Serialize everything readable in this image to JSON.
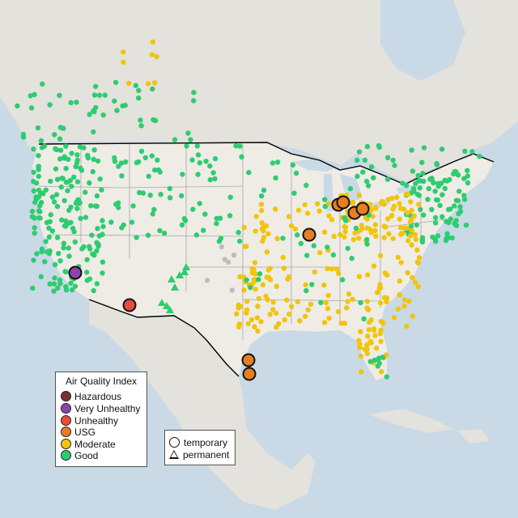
{
  "legend": {
    "title": "Air Quality Index",
    "categories": [
      {
        "label": "Hazardous",
        "color": "#7a3030"
      },
      {
        "label": "Very Unhealthy",
        "color": "#8e44ad"
      },
      {
        "label": "Unhealthy",
        "color": "#e74c3c"
      },
      {
        "label": "USG",
        "color": "#e67e22"
      },
      {
        "label": "Moderate",
        "color": "#f1c40f"
      },
      {
        "label": "Good",
        "color": "#2ecc71"
      }
    ]
  },
  "type_legend": {
    "temporary": "temporary",
    "permanent": "permanent"
  },
  "colors": {
    "water": "#c9d9e6",
    "land_us": "#ece9e3",
    "land_other": "#e2ded6",
    "border": "#000000",
    "state_line": "#a8a8a8",
    "no_data": "#bdbdbd"
  }
}
